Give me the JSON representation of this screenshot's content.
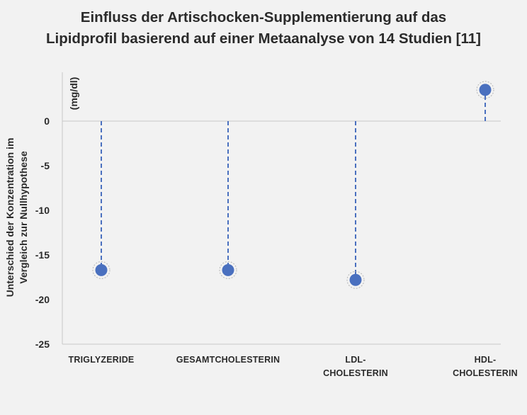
{
  "chart_data": {
    "type": "scatter",
    "title_lines": [
      "Einfluss der Artischocken-Supplementierung auf das",
      "Lipidprofil basierend auf einer Metaanalyse von 14 Studien  [11]"
    ],
    "ylabel_lines": [
      "Unterschied der Konzentration im",
      "Vergleich zur Nullhypothese"
    ],
    "unit": "(mg/dl)",
    "categories": [
      [
        "TRIGLYZERIDE"
      ],
      [
        "GESAMTCHOLESTERIN"
      ],
      [
        "LDL-",
        "CHOLESTERIN"
      ],
      [
        "HDL-",
        "CHOLESTERIN"
      ]
    ],
    "values": [
      -16.7,
      -16.7,
      -17.8,
      3.5
    ],
    "ylim": [
      -25,
      5
    ],
    "yticks": [
      "0",
      "-5",
      "-10",
      "-15",
      "-20",
      "-25"
    ],
    "ytick_values": [
      0,
      -5,
      -10,
      -15,
      -20,
      -25
    ],
    "grid": false,
    "colors": {
      "marker": "#4a70bf",
      "stem": "#4a70bf",
      "axis": "#c8c8c8",
      "text": "#2b2b2b",
      "background": "#f2f2f2"
    }
  }
}
